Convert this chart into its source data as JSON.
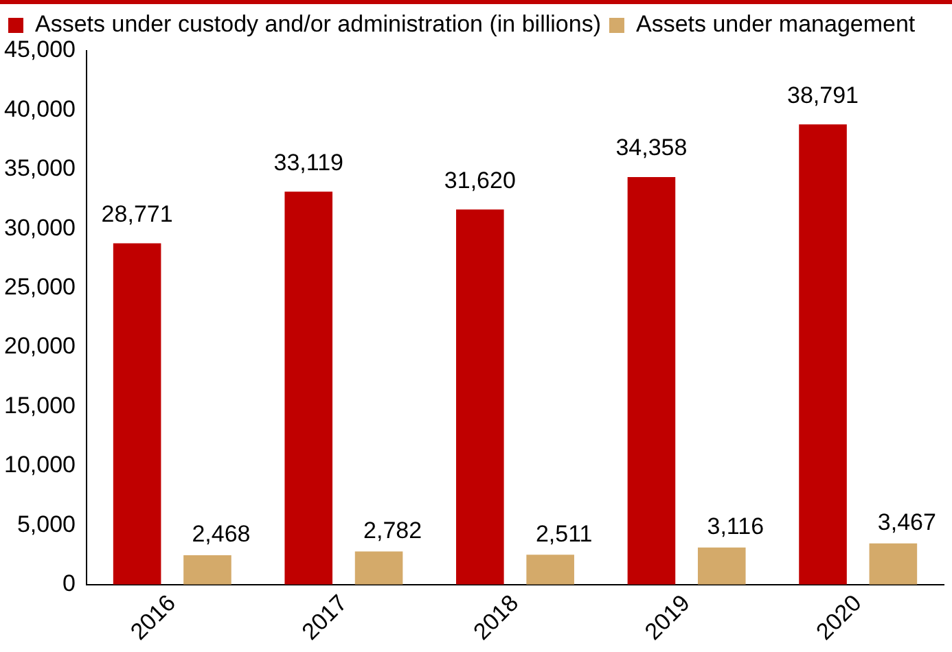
{
  "chart_data": {
    "type": "bar",
    "categories": [
      "2016",
      "2017",
      "2018",
      "2019",
      "2020"
    ],
    "series": [
      {
        "name": "Assets under custody and/or administration (in billions)",
        "color": "#c00000",
        "values": [
          28771,
          33119,
          31620,
          34358,
          38791
        ],
        "value_labels": [
          "28,771",
          "33,119",
          "31,620",
          "34,358",
          "38,791"
        ]
      },
      {
        "name": "Assets under management",
        "color": "#d4aa6a",
        "values": [
          2468,
          2782,
          2511,
          3116,
          3467
        ],
        "value_labels": [
          "2,468",
          "2,782",
          "2,511",
          "3,116",
          "3,467"
        ]
      }
    ],
    "ylim": [
      0,
      45000
    ],
    "yticks": [
      {
        "value": 0,
        "label": "0"
      },
      {
        "value": 5000,
        "label": "5,000"
      },
      {
        "value": 10000,
        "label": "10,000"
      },
      {
        "value": 15000,
        "label": "15,000"
      },
      {
        "value": 20000,
        "label": "20,000"
      },
      {
        "value": 25000,
        "label": "25,000"
      },
      {
        "value": 30000,
        "label": "30,000"
      },
      {
        "value": 35000,
        "label": "35,000"
      },
      {
        "value": 40000,
        "label": "40,000"
      },
      {
        "value": 45000,
        "label": "45,000"
      }
    ],
    "grid": false,
    "legend": "top left"
  }
}
